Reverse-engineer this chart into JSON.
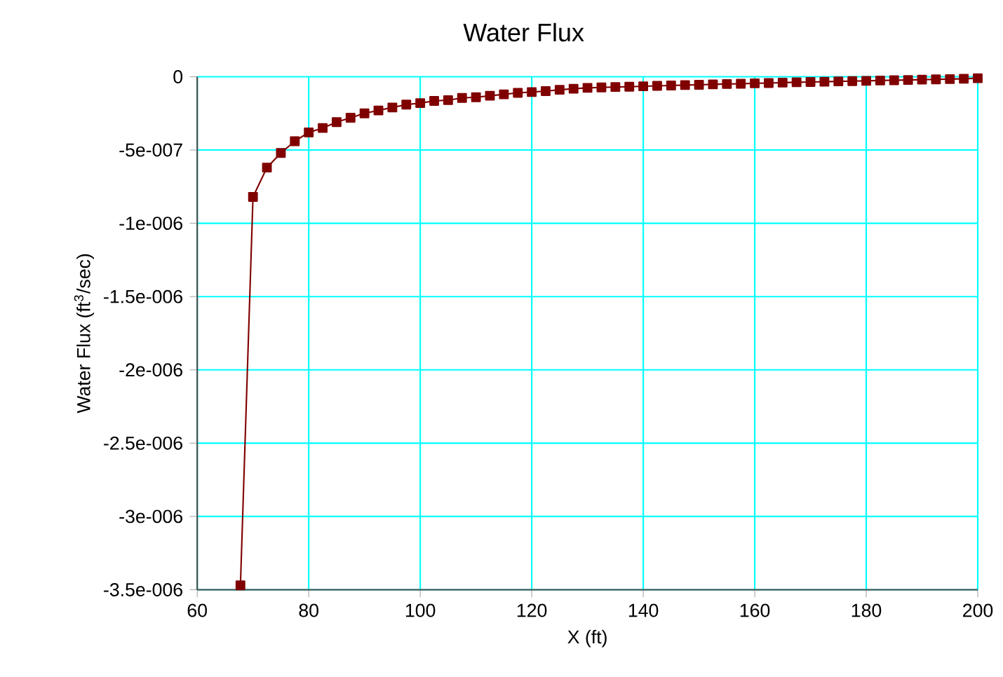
{
  "chart_data": {
    "type": "line",
    "title": "Water Flux",
    "xlabel": "X (ft)",
    "ylabel": "Water Flux (ft$^{3}$/sec)",
    "x": [
      67.75,
      70,
      72.5,
      75,
      77.5,
      80,
      82.5,
      85,
      87.5,
      90,
      92.5,
      95,
      97.5,
      100,
      102.5,
      105,
      107.5,
      110,
      112.5,
      115,
      117.5,
      120,
      122.5,
      125,
      127.5,
      130,
      132.5,
      135,
      137.5,
      140,
      142.5,
      145,
      147.5,
      150,
      152.5,
      155,
      157.5,
      160,
      162.5,
      165,
      167.5,
      170,
      172.5,
      175,
      177.5,
      180,
      182.5,
      185,
      187.5,
      190,
      192.5,
      195,
      197.5,
      200
    ],
    "series": [
      {
        "color": "#800000",
        "values": [
          -3.47e-06,
          -8.2e-07,
          -6.2e-07,
          -5.2e-07,
          -4.4e-07,
          -3.8e-07,
          -3.5e-07,
          -3.1e-07,
          -2.8e-07,
          -2.5e-07,
          -2.3e-07,
          -2.1e-07,
          -1.9e-07,
          -1.8e-07,
          -1.65e-07,
          -1.6e-07,
          -1.45e-07,
          -1.4e-07,
          -1.3e-07,
          -1.2e-07,
          -1.1e-07,
          -1.05e-07,
          -9.8e-08,
          -8.9e-08,
          -8.2e-08,
          -7.6e-08,
          -7.3e-08,
          -7e-08,
          -6.8e-08,
          -6.5e-08,
          -6.2e-08,
          -6e-08,
          -5.7e-08,
          -5.5e-08,
          -5.2e-08,
          -5e-08,
          -4.8e-08,
          -4.5e-08,
          -4.3e-08,
          -4e-08,
          -3.8e-08,
          -3.6e-08,
          -3.4e-08,
          -3.2e-08,
          -3e-08,
          -2.8e-08,
          -2.6e-08,
          -2.4e-08,
          -2.2e-08,
          -2e-08,
          -1.8e-08,
          -1.6e-08,
          -1.4e-08,
          -1e-08
        ]
      }
    ],
    "xlim": [
      60,
      200
    ],
    "xticks": [
      60,
      80,
      100,
      120,
      140,
      160,
      180,
      200
    ],
    "ylim": [
      -3.5e-06,
      0
    ],
    "yticks": [
      {
        "value": -3.5e-06,
        "label": "-3.5e-006"
      },
      {
        "value": -3e-06,
        "label": "-3e-006"
      },
      {
        "value": -2.5e-06,
        "label": "-2.5e-006"
      },
      {
        "value": -2e-06,
        "label": "-2e-006"
      },
      {
        "value": -1.5e-06,
        "label": "-1.5e-006"
      },
      {
        "value": -1e-06,
        "label": "-1e-006"
      },
      {
        "value": -5e-07,
        "label": "-5e-007"
      },
      0
    ],
    "grid": true,
    "marker": "square",
    "line_style": "solid"
  }
}
